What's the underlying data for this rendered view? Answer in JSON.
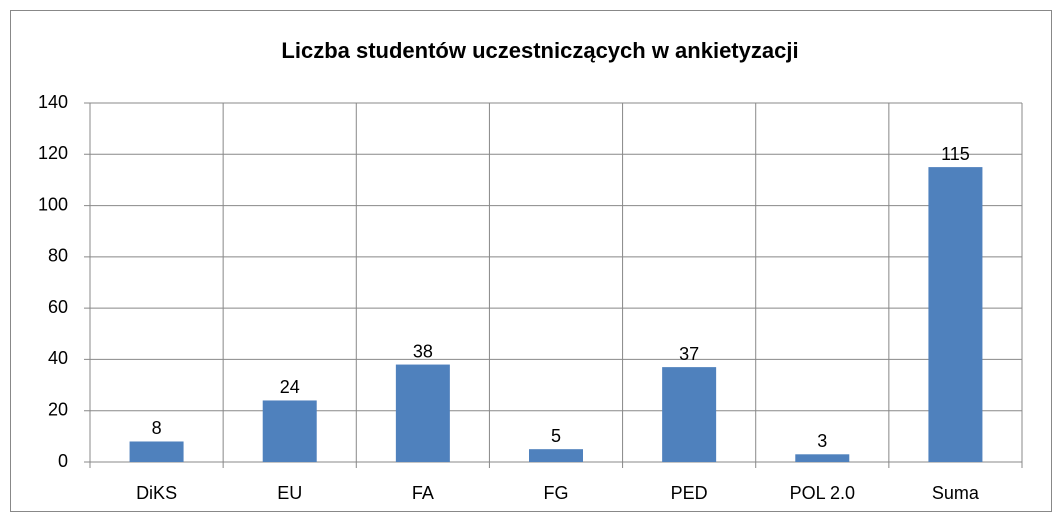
{
  "chart_data": {
    "type": "bar",
    "title": "Liczba studentów uczestniczących w ankietyzacji",
    "categories": [
      "DiKS",
      "EU",
      "FA",
      "FG",
      "PED",
      "POL 2.0",
      "Suma"
    ],
    "values": [
      8,
      24,
      38,
      5,
      37,
      3,
      115
    ],
    "color": "#4f81bd",
    "ylim": [
      0,
      140
    ],
    "yticks": [
      0,
      20,
      40,
      60,
      80,
      100,
      120,
      140
    ],
    "grid": true
  }
}
